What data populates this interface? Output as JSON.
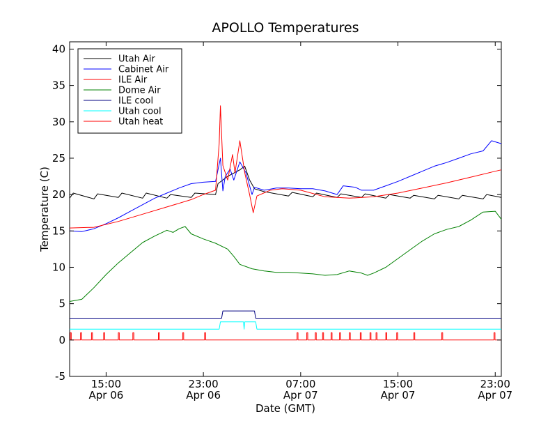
{
  "chart_data": {
    "type": "line",
    "title": "APOLLO Temperatures",
    "xlabel": "Date (GMT)",
    "ylabel": "Temperature (C)",
    "x_unit": "hours since Apr 06 12:00 GMT",
    "xlim": [
      0,
      35.5
    ],
    "ylim": [
      -5,
      41
    ],
    "yticks": [
      -5,
      0,
      5,
      10,
      15,
      20,
      25,
      30,
      35,
      40
    ],
    "xticks": [
      {
        "x": 3,
        "time": "15:00",
        "date": "Apr 06"
      },
      {
        "x": 11,
        "time": "23:00",
        "date": "Apr 06"
      },
      {
        "x": 19,
        "time": "07:00",
        "date": "Apr 07"
      },
      {
        "x": 27,
        "time": "15:00",
        "date": "Apr 07"
      },
      {
        "x": 35,
        "time": "23:00",
        "date": "Apr 07"
      }
    ],
    "legend_position": "top-left",
    "series": [
      {
        "name": "Utah Air",
        "color": "#000000",
        "points": [
          [
            0,
            19.5
          ],
          [
            0.3,
            20.2
          ],
          [
            2,
            19.4
          ],
          [
            2.3,
            20.1
          ],
          [
            4,
            19.6
          ],
          [
            4.3,
            20.2
          ],
          [
            6,
            19.5
          ],
          [
            6.3,
            20.2
          ],
          [
            8,
            19.5
          ],
          [
            8.3,
            20.0
          ],
          [
            10,
            19.6
          ],
          [
            10.3,
            20.2
          ],
          [
            12,
            20.0
          ],
          [
            12.2,
            21.5
          ],
          [
            13,
            22.5
          ],
          [
            14,
            23.4
          ],
          [
            14.4,
            23.9
          ],
          [
            14.8,
            22.0
          ],
          [
            15.2,
            20.8
          ],
          [
            16,
            20.4
          ],
          [
            18,
            19.8
          ],
          [
            18.3,
            20.3
          ],
          [
            20,
            19.7
          ],
          [
            20.3,
            20.2
          ],
          [
            22,
            19.6
          ],
          [
            22.3,
            20.1
          ],
          [
            24,
            19.6
          ],
          [
            24.3,
            20.1
          ],
          [
            26,
            19.5
          ],
          [
            26.3,
            20.0
          ],
          [
            28,
            19.5
          ],
          [
            28.3,
            19.9
          ],
          [
            30,
            19.4
          ],
          [
            30.3,
            19.9
          ],
          [
            32,
            19.4
          ],
          [
            32.3,
            19.9
          ],
          [
            34,
            19.4
          ],
          [
            34.3,
            20.0
          ],
          [
            35.5,
            19.6
          ]
        ]
      },
      {
        "name": "Cabinet Air",
        "color": "#0000ff",
        "points": [
          [
            0,
            15.0
          ],
          [
            1,
            14.9
          ],
          [
            2,
            15.3
          ],
          [
            3,
            16.0
          ],
          [
            4,
            16.8
          ],
          [
            5,
            17.7
          ],
          [
            6,
            18.6
          ],
          [
            7,
            19.5
          ],
          [
            8,
            20.2
          ],
          [
            9,
            20.9
          ],
          [
            10,
            21.5
          ],
          [
            11,
            21.7
          ],
          [
            12,
            21.8
          ],
          [
            12.4,
            25.0
          ],
          [
            12.6,
            20.5
          ],
          [
            12.8,
            22.5
          ],
          [
            13.2,
            23.5
          ],
          [
            13.5,
            22.0
          ],
          [
            14,
            24.5
          ],
          [
            14.5,
            23.0
          ],
          [
            15,
            20.0
          ],
          [
            15.2,
            21.0
          ],
          [
            16,
            20.6
          ],
          [
            17,
            20.9
          ],
          [
            18,
            20.9
          ],
          [
            19,
            20.8
          ],
          [
            20,
            20.8
          ],
          [
            21,
            20.5
          ],
          [
            22,
            20.0
          ],
          [
            22.5,
            21.2
          ],
          [
            23.5,
            21.0
          ],
          [
            24,
            20.6
          ],
          [
            25,
            20.6
          ],
          [
            26,
            21.2
          ],
          [
            27,
            21.8
          ],
          [
            28,
            22.5
          ],
          [
            29,
            23.2
          ],
          [
            30,
            23.9
          ],
          [
            31,
            24.4
          ],
          [
            32,
            25.0
          ],
          [
            33,
            25.6
          ],
          [
            34,
            26.0
          ],
          [
            34.7,
            27.4
          ],
          [
            35.5,
            27.0
          ]
        ]
      },
      {
        "name": "ILE Air",
        "color": "#ff0000",
        "points": [
          [
            0,
            15.4
          ],
          [
            2,
            15.5
          ],
          [
            4,
            16.3
          ],
          [
            6,
            17.3
          ],
          [
            8,
            18.3
          ],
          [
            10,
            19.3
          ],
          [
            11,
            20.0
          ],
          [
            12,
            20.6
          ],
          [
            12.3,
            27.0
          ],
          [
            12.4,
            32.2
          ],
          [
            12.6,
            24.0
          ],
          [
            13,
            22.0
          ],
          [
            13.4,
            25.5
          ],
          [
            13.6,
            23.0
          ],
          [
            14,
            27.4
          ],
          [
            14.4,
            23.0
          ],
          [
            14.8,
            20.0
          ],
          [
            15.1,
            17.5
          ],
          [
            15.4,
            19.8
          ],
          [
            16.5,
            20.6
          ],
          [
            17.5,
            20.8
          ],
          [
            19,
            20.6
          ],
          [
            21,
            19.7
          ],
          [
            23,
            19.5
          ],
          [
            25,
            19.7
          ],
          [
            27,
            20.2
          ],
          [
            29,
            20.9
          ],
          [
            31,
            21.6
          ],
          [
            33,
            22.4
          ],
          [
            35,
            23.2
          ],
          [
            35.5,
            23.4
          ]
        ]
      },
      {
        "name": "Dome Air",
        "color": "#008000",
        "points": [
          [
            0,
            5.3
          ],
          [
            1,
            5.6
          ],
          [
            2,
            7.2
          ],
          [
            3,
            9.0
          ],
          [
            4,
            10.6
          ],
          [
            5,
            12.0
          ],
          [
            6,
            13.4
          ],
          [
            7,
            14.3
          ],
          [
            8,
            15.1
          ],
          [
            8.5,
            14.8
          ],
          [
            9,
            15.3
          ],
          [
            9.5,
            15.6
          ],
          [
            10,
            14.6
          ],
          [
            11,
            13.9
          ],
          [
            12,
            13.3
          ],
          [
            13,
            12.5
          ],
          [
            13.5,
            11.5
          ],
          [
            14,
            10.4
          ],
          [
            15,
            9.8
          ],
          [
            16,
            9.5
          ],
          [
            17,
            9.3
          ],
          [
            18,
            9.3
          ],
          [
            19,
            9.2
          ],
          [
            20,
            9.1
          ],
          [
            21,
            8.9
          ],
          [
            22,
            9.0
          ],
          [
            23,
            9.5
          ],
          [
            24,
            9.2
          ],
          [
            24.5,
            8.9
          ],
          [
            25,
            9.2
          ],
          [
            26,
            10.0
          ],
          [
            27,
            11.2
          ],
          [
            28,
            12.4
          ],
          [
            29,
            13.6
          ],
          [
            30,
            14.6
          ],
          [
            31,
            15.2
          ],
          [
            32,
            15.6
          ],
          [
            33,
            16.5
          ],
          [
            34,
            17.6
          ],
          [
            35,
            17.7
          ],
          [
            35.5,
            16.6
          ]
        ]
      },
      {
        "name": "ILE cool",
        "color": "#000080",
        "points": [
          [
            0,
            3.0
          ],
          [
            12.5,
            3.0
          ],
          [
            12.6,
            4.0
          ],
          [
            15.2,
            4.0
          ],
          [
            15.3,
            3.0
          ],
          [
            35.5,
            3.0
          ]
        ]
      },
      {
        "name": "Utah cool",
        "color": "#00ffff",
        "points": [
          [
            0,
            1.5
          ],
          [
            12.3,
            1.5
          ],
          [
            12.4,
            2.5
          ],
          [
            14.3,
            2.5
          ],
          [
            14.35,
            1.5
          ],
          [
            14.4,
            2.5
          ],
          [
            15.3,
            2.5
          ],
          [
            15.4,
            1.5
          ],
          [
            35.5,
            1.5
          ]
        ]
      },
      {
        "name": "Utah heat",
        "color": "#ff0000",
        "pulse_level": 0,
        "pulse_height": 1,
        "pulse_width": 0.08,
        "pulses": [
          0.05,
          0.9,
          1.8,
          2.8,
          4.0,
          5.2,
          7.3,
          9.3,
          11.1,
          18.7,
          19.5,
          20.2,
          20.8,
          21.5,
          22.2,
          23.0,
          23.9,
          24.7,
          25.2,
          26.0,
          26.9,
          28.3,
          30.6,
          34.9
        ]
      }
    ]
  }
}
